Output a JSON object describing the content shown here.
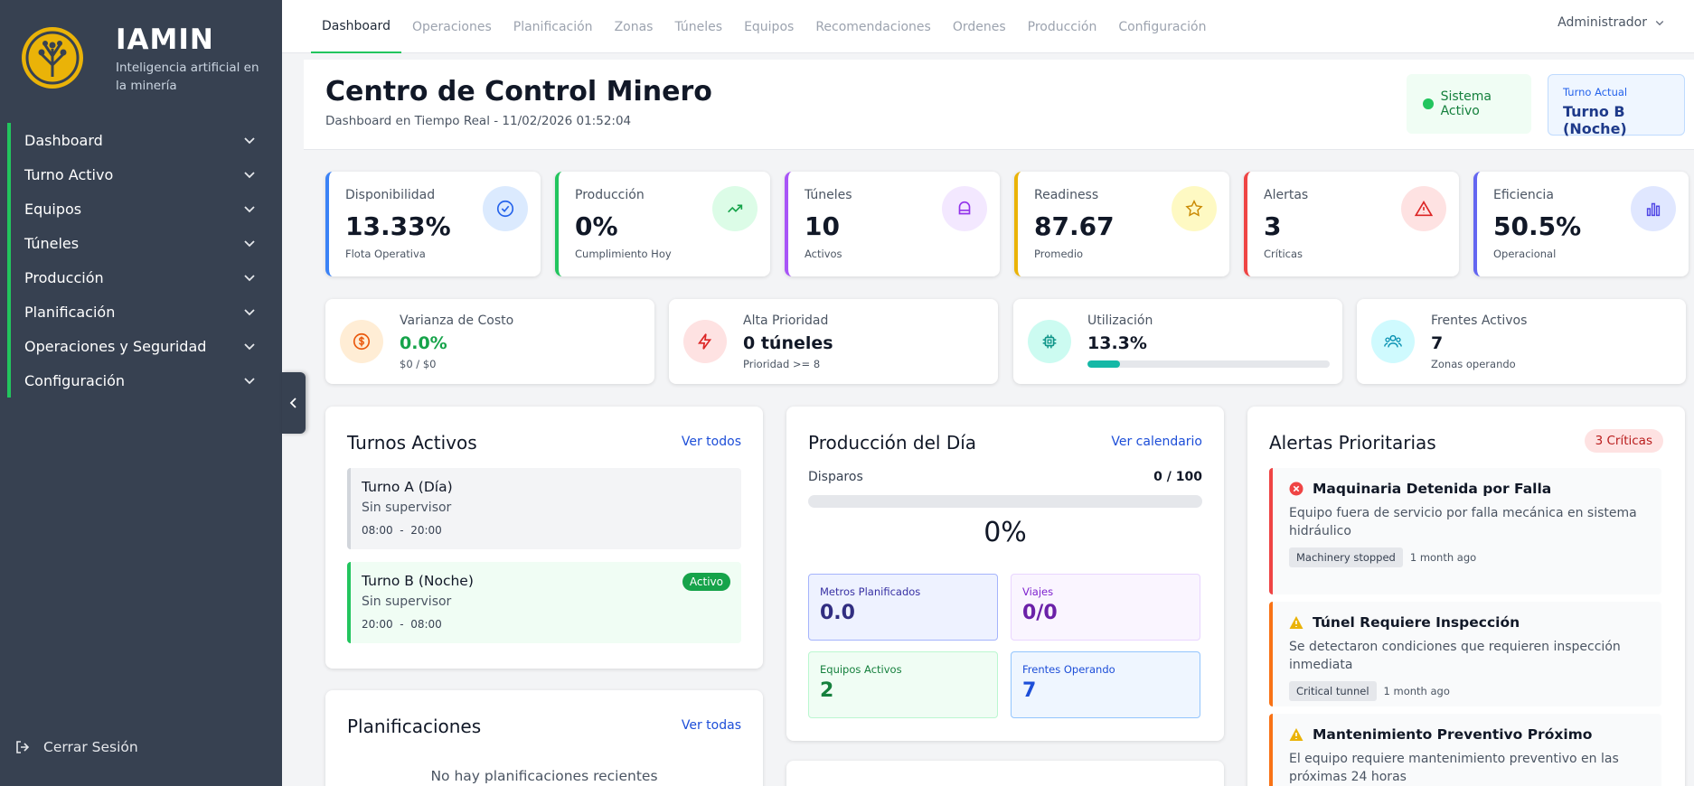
{
  "brand": {
    "name": "IAMIN",
    "tagline": "Inteligencia artificial en la minería"
  },
  "sidebar": {
    "items": [
      {
        "label": "Dashboard"
      },
      {
        "label": "Turno Activo"
      },
      {
        "label": "Equipos"
      },
      {
        "label": "Túneles"
      },
      {
        "label": "Producción"
      },
      {
        "label": "Planificación"
      },
      {
        "label": "Operaciones y Seguridad"
      },
      {
        "label": "Configuración"
      }
    ],
    "logout": "Cerrar Sesión"
  },
  "topnav": {
    "tabs": [
      {
        "label": "Dashboard"
      },
      {
        "label": "Operaciones"
      },
      {
        "label": "Planificación"
      },
      {
        "label": "Zonas"
      },
      {
        "label": "Túneles"
      },
      {
        "label": "Equipos"
      },
      {
        "label": "Recomendaciones"
      },
      {
        "label": "Ordenes"
      },
      {
        "label": "Producción"
      },
      {
        "label": "Configuración"
      }
    ],
    "user": "Administrador"
  },
  "header": {
    "title": "Centro de Control Minero",
    "subtitle": "Dashboard en Tiempo Real - 11/02/2026 01:52:04",
    "system_status": "Sistema Activo",
    "shift_label": "Turno Actual",
    "shift_value": "Turno B (Noche)"
  },
  "kpis": [
    {
      "label": "Disponibilidad",
      "value": "13.33%",
      "sub": "Flota Operativa",
      "icon": "check-circle-icon",
      "color": "#3b82f6"
    },
    {
      "label": "Producción",
      "value": "0%",
      "sub": "Cumplimiento Hoy",
      "icon": "trending-up-icon",
      "color": "#22c55e"
    },
    {
      "label": "Túneles",
      "value": "10",
      "sub": "Activos",
      "icon": "tunnel-icon",
      "color": "#a855f7"
    },
    {
      "label": "Readiness",
      "value": "87.67",
      "sub": "Promedio",
      "icon": "star-icon",
      "color": "#eab308"
    },
    {
      "label": "Alertas",
      "value": "3",
      "sub": "Críticas",
      "icon": "warning-icon",
      "color": "#ef4444"
    },
    {
      "label": "Eficiencia",
      "value": "50.5%",
      "sub": "Operacional",
      "icon": "bar-chart-icon",
      "color": "#6366f1"
    }
  ],
  "minis": [
    {
      "label": "Varianza de Costo",
      "value": "0.0%",
      "sub": "$0 / $0",
      "icon": "dollar-icon"
    },
    {
      "label": "Alta Prioridad",
      "value": "0 túneles",
      "sub": "Prioridad >= 8",
      "icon": "lightning-icon"
    },
    {
      "label": "Utilización",
      "value": "13.3%",
      "progress": 0.133,
      "icon": "chip-icon"
    },
    {
      "label": "Frentes Activos",
      "value": "7",
      "sub": "Zonas operando",
      "icon": "users-icon"
    }
  ],
  "shifts": {
    "title": "Turnos Activos",
    "link": "Ver todos",
    "items": [
      {
        "name": "Turno A (Día)",
        "supervisor": "Sin supervisor",
        "start": "08:00",
        "end": "20:00"
      },
      {
        "name": "Turno B (Noche)",
        "supervisor": "Sin supervisor",
        "start": "20:00",
        "end": "08:00",
        "badge": "Activo"
      }
    ],
    "sep": "-"
  },
  "plans": {
    "title": "Planificaciones",
    "link": "Ver todas",
    "empty": "No hay planificaciones recientes"
  },
  "production": {
    "title": "Producción del Día",
    "link": "Ver calendario",
    "shots_label": "Disparos",
    "shots_value": "0 / 100",
    "percent": "0%",
    "tiles": [
      {
        "label": "Metros Planificados",
        "value": "0.0"
      },
      {
        "label": "Viajes",
        "value": "0/0"
      },
      {
        "label": "Equipos Activos",
        "value": "2"
      },
      {
        "label": "Frentes Operando",
        "value": "7"
      }
    ]
  },
  "alerts": {
    "title": "Alertas Prioritarias",
    "badge": "3 Críticas",
    "items": [
      {
        "title": "Maquinaria Detenida por Falla",
        "desc": "Equipo fuera de servicio por falla mecánica en sistema hidráulico",
        "tag": "Machinery stopped",
        "time": "1 month ago",
        "icon": "error-icon"
      },
      {
        "title": "Túnel Requiere Inspección",
        "desc": "Se detectaron condiciones que requieren inspección inmediata",
        "tag": "Critical tunnel",
        "time": "1 month ago",
        "icon": "warning-icon"
      },
      {
        "title": "Mantenimiento Preventivo Próximo",
        "desc": "El equipo requiere mantenimiento preventivo en las próximas 24 horas",
        "icon": "warning-icon"
      }
    ]
  }
}
